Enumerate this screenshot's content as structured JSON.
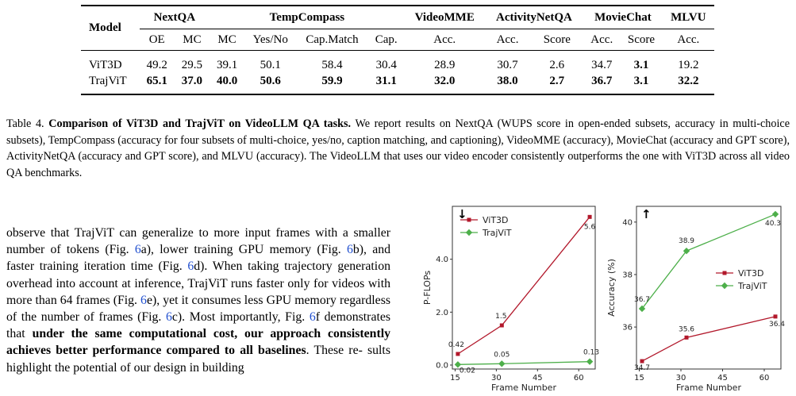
{
  "table": {
    "model_header": "Model",
    "groups": [
      {
        "name": "NextQA",
        "subs": [
          "OE",
          "MC"
        ]
      },
      {
        "name": "TempCompass",
        "subs": [
          "MC",
          "Yes/No",
          "Cap.Match",
          "Cap."
        ]
      },
      {
        "name": "VideoMME",
        "subs": [
          "Acc."
        ]
      },
      {
        "name": "ActivityNetQA",
        "subs": [
          "Acc.",
          "Score"
        ]
      },
      {
        "name": "MovieChat",
        "subs": [
          "Acc.",
          "Score"
        ]
      },
      {
        "name": "MLVU",
        "subs": [
          "Acc."
        ]
      }
    ],
    "rows": [
      {
        "model": "ViT3D",
        "values": [
          "49.2",
          "29.5",
          "39.1",
          "50.1",
          "58.4",
          "30.4",
          "28.9",
          "30.7",
          "2.6",
          "34.7",
          "3.1",
          "19.2"
        ],
        "bold": [
          false,
          false,
          false,
          false,
          false,
          false,
          false,
          false,
          false,
          false,
          true,
          false
        ]
      },
      {
        "model": "TrajViT",
        "values": [
          "65.1",
          "37.0",
          "40.0",
          "50.6",
          "59.9",
          "31.1",
          "32.0",
          "38.0",
          "2.7",
          "36.7",
          "3.1",
          "32.2"
        ],
        "bold": [
          true,
          true,
          true,
          true,
          true,
          true,
          true,
          true,
          true,
          true,
          true,
          true
        ]
      }
    ]
  },
  "caption": {
    "label": "Table 4.",
    "title": "Comparison of ViT3D and TrajViT on VideoLLM QA tasks.",
    "body": "We report results on NextQA (WUPS score in open-ended subsets, accuracy in multi-choice subsets), TempCompass (accuracy for four subsets of multi-choice, yes/no, caption matching, and captioning), VideoMME (accuracy), MovieChat (accuracy and GPT score), ActivityNetQA (accuracy and GPT score), and MLVU (accuracy). The VideoLLM that uses our video encoder consistently outperforms the one with ViT3D across all video QA benchmarks."
  },
  "body_text": {
    "p1": "observe that TrajViT can generalize to more input frames with a smaller number of tokens (Fig. ",
    "ref_a": "6",
    "p2": "a), lower training GPU memory (Fig. ",
    "ref_b": "6",
    "p3": "b), and faster training iteration time (Fig. ",
    "ref_d": "6",
    "p4": "d). When taking trajectory generation overhead into account at inference, TrajViT runs faster only for videos with more than 64 frames (Fig. ",
    "ref_e": "6",
    "p5": "e), yet it consumes less GPU memory regardless of the number of frames (Fig. ",
    "ref_c": "6",
    "p6": "c). Most importantly, Fig. ",
    "ref_f": "6",
    "p7": "f demonstrates that ",
    "bold": "under the same computational cost, our approach consistently achieves better performance compared to all baselines",
    "p8": ". These re-",
    "p9": "sults highlight the potential of our design in building"
  },
  "chart_data": [
    {
      "type": "line",
      "ylabel": "P-FLOPs",
      "xlabel": "Frame Number",
      "direction_marker": "↓",
      "x": [
        16,
        32,
        64
      ],
      "x_ticks": [
        "15",
        "30",
        "45",
        "60"
      ],
      "x_tick_values": [
        15,
        30,
        45,
        60
      ],
      "y_ticks": [
        "0.0",
        "2.0",
        "4.0"
      ],
      "y_tick_values": [
        0,
        2,
        4
      ],
      "xlim": [
        14,
        66
      ],
      "ylim": [
        -0.15,
        6.0
      ],
      "legend_position": "top-left",
      "series": [
        {
          "name": "ViT3D",
          "color": "#b2182b",
          "marker": "square",
          "values": [
            0.42,
            1.5,
            5.6
          ],
          "labels": [
            "0.42",
            "1.5",
            "5.6"
          ]
        },
        {
          "name": "TrajViT",
          "color": "#4daf4a",
          "marker": "diamond",
          "values": [
            0.02,
            0.05,
            0.13
          ],
          "labels": [
            "0.02",
            "0.05",
            "0.13"
          ]
        }
      ]
    },
    {
      "type": "line",
      "ylabel": "Accuracy (%)",
      "xlabel": "Frame Number",
      "direction_marker": "↑",
      "x": [
        16,
        32,
        64
      ],
      "x_ticks": [
        "15",
        "30",
        "45",
        "60"
      ],
      "x_tick_values": [
        15,
        30,
        45,
        60
      ],
      "y_ticks": [
        "36",
        "38",
        "40"
      ],
      "y_tick_values": [
        36,
        38,
        40
      ],
      "xlim": [
        14,
        66
      ],
      "ylim": [
        34.4,
        40.6
      ],
      "legend_position": "center-right",
      "series": [
        {
          "name": "ViT3D",
          "color": "#b2182b",
          "marker": "square",
          "values": [
            34.7,
            35.6,
            36.4
          ],
          "labels": [
            "34.7",
            "35.6",
            "36.4"
          ]
        },
        {
          "name": "TrajViT",
          "color": "#4daf4a",
          "marker": "diamond",
          "values": [
            36.7,
            38.9,
            40.3
          ],
          "labels": [
            "36.7",
            "38.9",
            "40.3"
          ]
        }
      ]
    }
  ]
}
